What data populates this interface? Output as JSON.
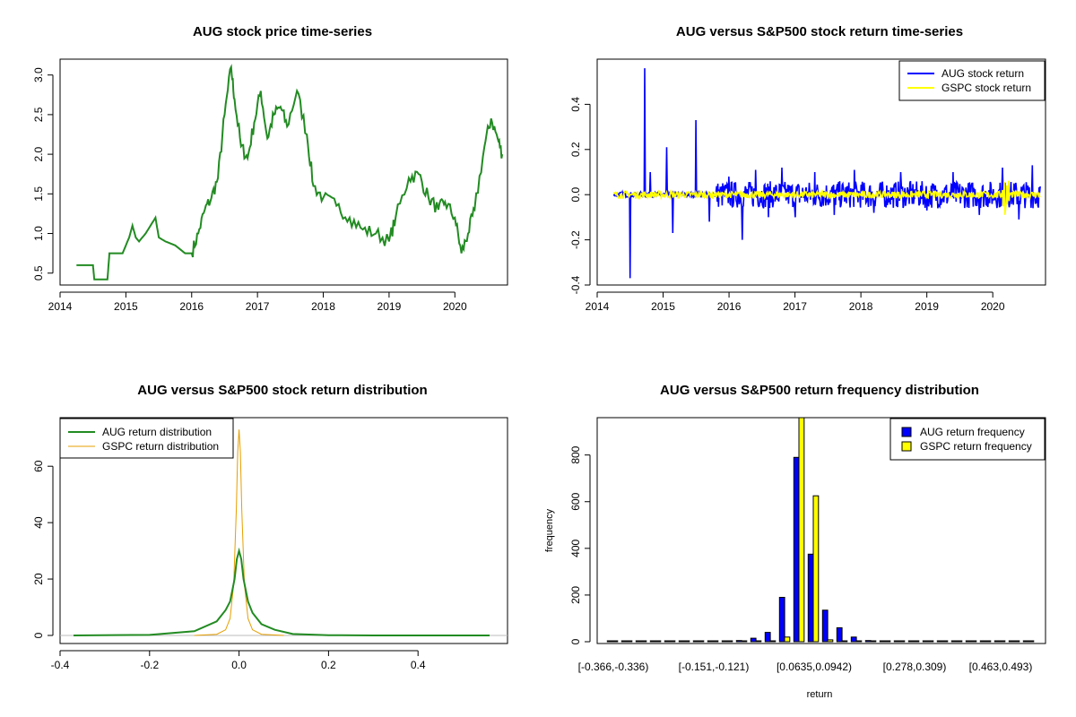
{
  "colors": {
    "aug_price": "#228B22",
    "aug_return": "#0000FF",
    "gspc_return": "#FFFF00",
    "aug_density": "#228B22",
    "gspc_density": "#E69F00",
    "aug_bar": "#0000FF",
    "gspc_bar": "#FFFF00"
  },
  "chart_data": [
    {
      "type": "line",
      "title": "AUG stock price time-series",
      "xlabel": "",
      "ylabel": "",
      "xlim": [
        2014,
        2020.8
      ],
      "ylim": [
        0.35,
        3.2
      ],
      "xticks": [
        "2014",
        "2015",
        "2016",
        "2017",
        "2018",
        "2019",
        "2020"
      ],
      "yticks": [
        "0.5",
        "1.0",
        "1.5",
        "2.0",
        "2.5",
        "3.0"
      ],
      "series": [
        {
          "name": "AUG stock price",
          "x": [
            2014.25,
            2014.5,
            2014.52,
            2014.72,
            2014.75,
            2014.95,
            2015.05,
            2015.1,
            2015.15,
            2015.2,
            2015.3,
            2015.45,
            2015.5,
            2015.6,
            2015.75,
            2015.9,
            2016.0,
            2016.1,
            2016.2,
            2016.3,
            2016.4,
            2016.5,
            2016.6,
            2016.65,
            2016.75,
            2016.85,
            2016.95,
            2017.05,
            2017.15,
            2017.25,
            2017.35,
            2017.45,
            2017.6,
            2017.75,
            2017.85,
            2018.0,
            2018.2,
            2018.4,
            2018.6,
            2018.8,
            2019.0,
            2019.1,
            2019.3,
            2019.45,
            2019.6,
            2019.75,
            2019.85,
            2020.0,
            2020.1,
            2020.2,
            2020.3,
            2020.45,
            2020.55,
            2020.65,
            2020.72
          ],
          "y": [
            0.6,
            0.6,
            0.42,
            0.42,
            0.75,
            0.75,
            0.95,
            1.1,
            0.95,
            0.9,
            1.0,
            1.2,
            0.95,
            0.9,
            0.85,
            0.75,
            0.75,
            1.0,
            1.3,
            1.45,
            1.7,
            2.5,
            3.1,
            2.7,
            2.1,
            1.95,
            2.4,
            2.8,
            2.2,
            2.5,
            2.6,
            2.35,
            2.8,
            2.25,
            1.6,
            1.45,
            1.35,
            1.2,
            1.05,
            1.0,
            0.9,
            1.2,
            1.7,
            1.75,
            1.45,
            1.3,
            1.4,
            1.2,
            0.75,
            1.0,
            1.3,
            2.1,
            2.45,
            2.2,
            2.0
          ]
        }
      ]
    },
    {
      "type": "line",
      "title": "AUG versus S&P500 stock return time-series",
      "xlabel": "",
      "ylabel": "",
      "xlim": [
        2014,
        2020.8
      ],
      "ylim": [
        -0.4,
        0.6
      ],
      "xticks": [
        "2014",
        "2015",
        "2016",
        "2017",
        "2018",
        "2019",
        "2020"
      ],
      "yticks": [
        "-0.4",
        "-0.2",
        "0.0",
        "0.2",
        "0.4"
      ],
      "legend": [
        "AUG stock return",
        "GSPC stock return"
      ],
      "series": [
        {
          "name": "AUG stock return",
          "x": [
            2014.5,
            2014.72,
            2014.8,
            2015.05,
            2015.15,
            2015.5,
            2015.7,
            2016.0,
            2016.2,
            2016.4,
            2016.6,
            2016.8,
            2017.0,
            2017.3,
            2017.6,
            2017.9,
            2018.2,
            2018.6,
            2019.0,
            2019.4,
            2019.8,
            2020.15,
            2020.4,
            2020.6
          ],
          "y": [
            -0.37,
            0.56,
            0.1,
            0.21,
            -0.17,
            0.33,
            -0.12,
            0.08,
            -0.2,
            0.11,
            -0.1,
            0.12,
            -0.1,
            0.1,
            -0.09,
            0.11,
            -0.08,
            0.1,
            -0.07,
            0.1,
            -0.09,
            0.12,
            -0.11,
            0.13
          ],
          "noise_amplitude": 0.06
        },
        {
          "name": "GSPC stock return",
          "x": [
            2014.25,
            2020.2,
            2020.72
          ],
          "y": [
            0.0,
            -0.12,
            0.0
          ],
          "noise_amplitude": 0.015
        }
      ]
    },
    {
      "type": "line",
      "title": "AUG versus S&P500 stock return distribution",
      "xlabel": "",
      "ylabel": "",
      "xlim": [
        -0.4,
        0.6
      ],
      "ylim": [
        0,
        75
      ],
      "xticks": [
        "-0.4",
        "-0.2",
        "0.0",
        "0.2",
        "0.4"
      ],
      "yticks": [
        "0",
        "20",
        "40",
        "60"
      ],
      "legend": [
        "AUG return distribution",
        "GSPC return distribution"
      ],
      "series": [
        {
          "name": "AUG return distribution",
          "x": [
            -0.37,
            -0.2,
            -0.1,
            -0.05,
            -0.03,
            -0.02,
            -0.01,
            -0.005,
            0.0,
            0.005,
            0.01,
            0.02,
            0.03,
            0.05,
            0.08,
            0.12,
            0.2,
            0.3,
            0.4,
            0.56
          ],
          "y": [
            0.0,
            0.2,
            1.5,
            5,
            9,
            12,
            20,
            27,
            30,
            27,
            20,
            12,
            8,
            4,
            2,
            0.5,
            0.1,
            0.0,
            0.0,
            0.0
          ]
        },
        {
          "name": "GSPC return distribution",
          "x": [
            -0.1,
            -0.05,
            -0.03,
            -0.02,
            -0.012,
            -0.006,
            -0.003,
            0.0,
            0.003,
            0.006,
            0.012,
            0.02,
            0.03,
            0.05,
            0.1
          ],
          "y": [
            0.0,
            0.4,
            2,
            6,
            18,
            45,
            65,
            73,
            65,
            45,
            18,
            6,
            2,
            0.4,
            0.0
          ]
        }
      ]
    },
    {
      "type": "bar",
      "title": "AUG versus S&P500 return frequency distribution",
      "xlabel": "return",
      "ylabel": "frequency",
      "ylim": [
        0,
        960
      ],
      "yticks": [
        "0",
        "200",
        "400",
        "600",
        "800"
      ],
      "category_labels_shown": [
        "[-0.366,-0.336)",
        "[-0.151,-0.121)",
        "[0.0635,0.0942)",
        "[0.278,0.309)",
        "[0.463,0.493)"
      ],
      "legend": [
        "AUG return frequency",
        "GSPC return frequency"
      ],
      "series": [
        {
          "name": "AUG return frequency",
          "values": [
            1,
            0,
            0,
            0,
            0,
            0,
            0,
            2,
            3,
            5,
            15,
            40,
            190,
            790,
            375,
            135,
            60,
            20,
            5,
            3,
            2,
            1,
            1,
            1,
            2,
            1,
            1,
            1,
            0,
            0
          ]
        },
        {
          "name": "GSPC return frequency",
          "values": [
            0,
            0,
            0,
            0,
            0,
            0,
            0,
            0,
            0,
            0,
            0,
            2,
            20,
            960,
            625,
            8,
            0,
            0,
            0,
            0,
            0,
            0,
            0,
            0,
            0,
            0,
            0,
            0,
            0,
            0
          ]
        }
      ]
    }
  ]
}
